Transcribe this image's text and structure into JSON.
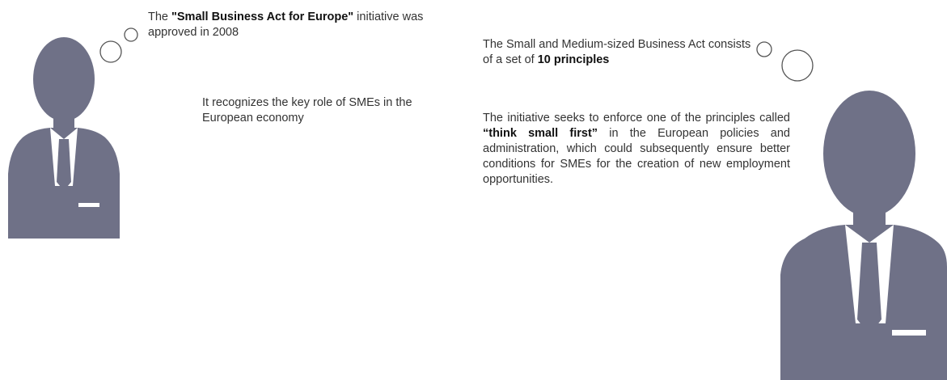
{
  "statements": [
    {
      "parts": [
        {
          "text": "The "
        },
        {
          "text": "\"Small Business Act for Europe\"",
          "bold": true
        },
        {
          "text": " initiative was approved in 2008"
        }
      ]
    },
    {
      "parts": [
        {
          "text": "It recognizes the key role of SMEs in the European economy"
        }
      ]
    },
    {
      "parts": [
        {
          "text": "The Small and Medium-sized Business Act consists of a set of "
        },
        {
          "text": "10 principles",
          "bold": true
        }
      ]
    },
    {
      "parts": [
        {
          "text": "The initiative seeks to enforce one of the principles called "
        },
        {
          "text": "“think small first”",
          "bold": true
        },
        {
          "text": " in the European policies and administration, which could subsequently ensure better conditions for SMEs for the creation of new employment opportunities."
        }
      ]
    }
  ]
}
